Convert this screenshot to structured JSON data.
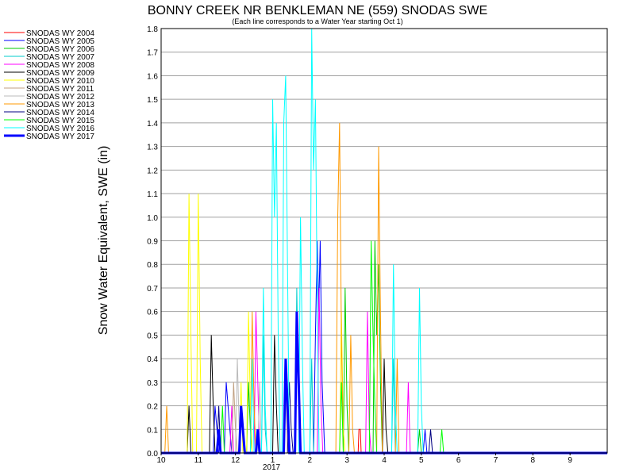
{
  "chart_data": {
    "type": "line",
    "title": "BONNY CREEK NR BENKLEMAN NE (559) SNODAS SWE",
    "subtitle": "(Each line corresponds to a Water Year starting Oct 1)",
    "ylabel": "Snow Water Equivalent, SWE (in)",
    "xlabel": "",
    "x_ticks": [
      "10",
      "11",
      "12",
      "1",
      "2",
      "3",
      "4",
      "5",
      "6",
      "7",
      "8",
      "9"
    ],
    "x_year_label": "2017",
    "y_ticks": [
      "0.0",
      "0.1",
      "0.2",
      "0.3",
      "0.4",
      "0.5",
      "0.6",
      "0.7",
      "0.8",
      "0.9",
      "1.0",
      "1.1",
      "1.2",
      "1.3",
      "1.4",
      "1.5",
      "1.6",
      "1.7",
      "1.8"
    ],
    "ylim": [
      0,
      1.8
    ],
    "x_unit": "month of water year (0 = Oct 1)",
    "xlim": [
      0,
      12
    ],
    "grid": "horizontal",
    "legend_position": "left",
    "series": [
      {
        "name": "SNODAS WY 2004",
        "color": "#ff0000",
        "width": 1,
        "points": [
          [
            0,
            0
          ],
          [
            5.3,
            0
          ],
          [
            5.32,
            0.1
          ],
          [
            5.36,
            0.1
          ],
          [
            5.38,
            0
          ],
          [
            12,
            0
          ]
        ]
      },
      {
        "name": "SNODAS WY 2005",
        "color": "#0000ff",
        "width": 1,
        "points": [
          [
            0,
            0
          ],
          [
            1.4,
            0
          ],
          [
            1.45,
            0.2
          ],
          [
            1.5,
            0.1
          ],
          [
            1.55,
            0
          ],
          [
            1.7,
            0
          ],
          [
            1.75,
            0.3
          ],
          [
            1.85,
            0.1
          ],
          [
            1.9,
            0
          ],
          [
            4.1,
            0
          ],
          [
            4.15,
            0.5
          ],
          [
            4.2,
            0.9
          ],
          [
            4.24,
            0.6
          ],
          [
            4.28,
            0.9
          ],
          [
            4.33,
            0.3
          ],
          [
            4.4,
            0
          ],
          [
            7.05,
            0
          ],
          [
            7.1,
            0.1
          ],
          [
            7.15,
            0
          ],
          [
            12,
            0
          ]
        ]
      },
      {
        "name": "SNODAS WY 2006",
        "color": "#00cc00",
        "width": 1,
        "points": [
          [
            0,
            0
          ],
          [
            2.3,
            0
          ],
          [
            2.35,
            0.3
          ],
          [
            2.4,
            0.1
          ],
          [
            2.45,
            0
          ],
          [
            4.9,
            0
          ],
          [
            4.95,
            0.7
          ],
          [
            5.0,
            0.2
          ],
          [
            5.05,
            0
          ],
          [
            5.7,
            0
          ],
          [
            5.75,
            0.9
          ],
          [
            5.8,
            0.5
          ],
          [
            5.85,
            0.8
          ],
          [
            5.9,
            0.3
          ],
          [
            5.95,
            0
          ],
          [
            6.9,
            0
          ],
          [
            6.95,
            0.1
          ],
          [
            7.0,
            0
          ],
          [
            12,
            0
          ]
        ]
      },
      {
        "name": "SNODAS WY 2007",
        "color": "#00cccc",
        "width": 1,
        "points": [
          [
            0,
            0
          ],
          [
            2.7,
            0
          ],
          [
            2.75,
            0.5
          ],
          [
            2.8,
            0.1
          ],
          [
            2.85,
            0
          ],
          [
            3.6,
            0
          ],
          [
            3.65,
            0.7
          ],
          [
            3.7,
            0.2
          ],
          [
            3.75,
            0
          ],
          [
            4.0,
            0
          ],
          [
            4.05,
            0.4
          ],
          [
            4.1,
            0
          ],
          [
            6.2,
            0
          ],
          [
            6.25,
            0.4
          ],
          [
            6.3,
            0
          ],
          [
            12,
            0
          ]
        ]
      },
      {
        "name": "SNODAS WY 2008",
        "color": "#ff00ff",
        "width": 1,
        "points": [
          [
            0,
            0
          ],
          [
            1.85,
            0
          ],
          [
            1.9,
            0.2
          ],
          [
            1.95,
            0
          ],
          [
            2.5,
            0
          ],
          [
            2.55,
            0.6
          ],
          [
            2.6,
            0.3
          ],
          [
            2.65,
            0
          ],
          [
            4.2,
            0
          ],
          [
            4.25,
            0.7
          ],
          [
            4.3,
            0.2
          ],
          [
            4.35,
            0
          ],
          [
            5.5,
            0
          ],
          [
            5.55,
            0.6
          ],
          [
            5.6,
            0.1
          ],
          [
            5.65,
            0
          ],
          [
            6.6,
            0
          ],
          [
            6.65,
            0.3
          ],
          [
            6.7,
            0
          ],
          [
            12,
            0
          ]
        ]
      },
      {
        "name": "SNODAS WY 2009",
        "color": "#000000",
        "width": 1,
        "points": [
          [
            0,
            0
          ],
          [
            0.7,
            0
          ],
          [
            0.75,
            0.2
          ],
          [
            0.8,
            0
          ],
          [
            1.3,
            0
          ],
          [
            1.35,
            0.5
          ],
          [
            1.4,
            0.2
          ],
          [
            1.45,
            0
          ],
          [
            3.0,
            0
          ],
          [
            3.05,
            0.5
          ],
          [
            3.1,
            0.2
          ],
          [
            3.15,
            0
          ],
          [
            5.95,
            0
          ],
          [
            6.0,
            0.4
          ],
          [
            6.05,
            0.1
          ],
          [
            6.1,
            0
          ],
          [
            12,
            0
          ]
        ]
      },
      {
        "name": "SNODAS WY 2010",
        "color": "#ffff00",
        "width": 1,
        "points": [
          [
            0,
            0
          ],
          [
            0.7,
            0
          ],
          [
            0.75,
            1.1
          ],
          [
            0.8,
            0.5
          ],
          [
            0.85,
            0
          ],
          [
            0.95,
            0
          ],
          [
            1.0,
            1.1
          ],
          [
            1.05,
            0.4
          ],
          [
            1.1,
            0
          ],
          [
            2.1,
            0
          ],
          [
            2.15,
            0.3
          ],
          [
            2.2,
            0
          ],
          [
            2.3,
            0
          ],
          [
            2.35,
            0.6
          ],
          [
            2.4,
            0.2
          ],
          [
            2.45,
            0
          ],
          [
            4.8,
            0
          ],
          [
            4.85,
            0.6
          ],
          [
            4.9,
            0.1
          ],
          [
            4.95,
            0
          ],
          [
            12,
            0
          ]
        ]
      },
      {
        "name": "SNODAS WY 2011",
        "color": "#c0a080",
        "width": 1,
        "points": [
          [
            0,
            0
          ],
          [
            1.9,
            0
          ],
          [
            1.95,
            0.3
          ],
          [
            2.0,
            0.1
          ],
          [
            2.05,
            0
          ],
          [
            3.3,
            0
          ],
          [
            3.35,
            0.3
          ],
          [
            3.4,
            0
          ],
          [
            12,
            0
          ]
        ]
      },
      {
        "name": "SNODAS WY 2012",
        "color": "#bbbbbb",
        "width": 1,
        "points": [
          [
            0,
            0
          ],
          [
            2.0,
            0
          ],
          [
            2.05,
            0.4
          ],
          [
            2.1,
            0.1
          ],
          [
            2.15,
            0
          ],
          [
            2.6,
            0
          ],
          [
            2.65,
            0.3
          ],
          [
            2.7,
            0
          ],
          [
            12,
            0
          ]
        ]
      },
      {
        "name": "SNODAS WY 2013",
        "color": "#ff9900",
        "width": 1,
        "points": [
          [
            0,
            0
          ],
          [
            0.1,
            0
          ],
          [
            0.15,
            0.2
          ],
          [
            0.2,
            0
          ],
          [
            2.4,
            0
          ],
          [
            2.45,
            0.6
          ],
          [
            2.5,
            0.2
          ],
          [
            2.55,
            0
          ],
          [
            4.7,
            0
          ],
          [
            4.75,
            1.0
          ],
          [
            4.8,
            1.4
          ],
          [
            4.85,
            0.5
          ],
          [
            4.9,
            0
          ],
          [
            5.05,
            0
          ],
          [
            5.1,
            0.5
          ],
          [
            5.15,
            0.1
          ],
          [
            5.2,
            0
          ],
          [
            5.8,
            0
          ],
          [
            5.85,
            1.3
          ],
          [
            5.9,
            0.6
          ],
          [
            5.95,
            0
          ],
          [
            6.3,
            0
          ],
          [
            6.35,
            0.4
          ],
          [
            6.4,
            0
          ],
          [
            12,
            0
          ]
        ]
      },
      {
        "name": "SNODAS WY 2014",
        "color": "#000080",
        "width": 1,
        "points": [
          [
            0,
            0
          ],
          [
            1.5,
            0
          ],
          [
            1.55,
            0.2
          ],
          [
            1.6,
            0
          ],
          [
            3.4,
            0
          ],
          [
            3.45,
            0.3
          ],
          [
            3.5,
            0.1
          ],
          [
            3.55,
            0
          ],
          [
            7.2,
            0
          ],
          [
            7.25,
            0.1
          ],
          [
            7.3,
            0
          ],
          [
            12,
            0
          ]
        ]
      },
      {
        "name": "SNODAS WY 2015",
        "color": "#00ff00",
        "width": 1,
        "points": [
          [
            0,
            0
          ],
          [
            1.6,
            0
          ],
          [
            1.65,
            0.2
          ],
          [
            1.7,
            0
          ],
          [
            4.8,
            0
          ],
          [
            4.85,
            0.3
          ],
          [
            4.9,
            0
          ],
          [
            5.6,
            0
          ],
          [
            5.65,
            0.9
          ],
          [
            5.7,
            0.5
          ],
          [
            5.75,
            0.2
          ],
          [
            5.8,
            0
          ],
          [
            7.5,
            0
          ],
          [
            7.55,
            0.1
          ],
          [
            7.6,
            0
          ],
          [
            12,
            0
          ]
        ]
      },
      {
        "name": "SNODAS WY 2016",
        "color": "#00ffff",
        "width": 1,
        "points": [
          [
            0,
            0
          ],
          [
            2.4,
            0
          ],
          [
            2.45,
            0.4
          ],
          [
            2.5,
            0
          ],
          [
            2.7,
            0
          ],
          [
            2.75,
            0.7
          ],
          [
            2.8,
            0.2
          ],
          [
            2.85,
            0
          ],
          [
            2.95,
            0
          ],
          [
            3.0,
            1.5
          ],
          [
            3.05,
            1.0
          ],
          [
            3.1,
            1.4
          ],
          [
            3.15,
            0.5
          ],
          [
            3.2,
            0
          ],
          [
            3.25,
            0
          ],
          [
            3.3,
            1.4
          ],
          [
            3.35,
            1.6
          ],
          [
            3.4,
            0.8
          ],
          [
            3.45,
            0
          ],
          [
            3.7,
            0
          ],
          [
            3.75,
            1.0
          ],
          [
            3.8,
            0.4
          ],
          [
            3.85,
            0
          ],
          [
            4.0,
            0
          ],
          [
            4.05,
            1.8
          ],
          [
            4.1,
            1.2
          ],
          [
            4.15,
            1.5
          ],
          [
            4.2,
            0.6
          ],
          [
            4.25,
            0
          ],
          [
            6.2,
            0
          ],
          [
            6.25,
            0.8
          ],
          [
            6.3,
            0.2
          ],
          [
            6.35,
            0
          ],
          [
            6.9,
            0
          ],
          [
            6.95,
            0.7
          ],
          [
            7.0,
            0.2
          ],
          [
            7.05,
            0
          ],
          [
            12,
            0
          ]
        ]
      },
      {
        "name": "SNODAS WY 2017",
        "color": "#0000ff",
        "width": 3,
        "points": [
          [
            0,
            0
          ],
          [
            1.5,
            0
          ],
          [
            1.55,
            0.1
          ],
          [
            1.6,
            0
          ],
          [
            2.1,
            0
          ],
          [
            2.15,
            0.2
          ],
          [
            2.2,
            0.1
          ],
          [
            2.25,
            0
          ],
          [
            2.55,
            0
          ],
          [
            2.6,
            0.1
          ],
          [
            2.65,
            0
          ],
          [
            3.3,
            0
          ],
          [
            3.35,
            0.4
          ],
          [
            3.4,
            0.2
          ],
          [
            3.45,
            0
          ],
          [
            3.6,
            0
          ],
          [
            3.65,
            0.6
          ],
          [
            3.7,
            0.3
          ],
          [
            3.75,
            0
          ],
          [
            12,
            0
          ]
        ]
      }
    ]
  }
}
